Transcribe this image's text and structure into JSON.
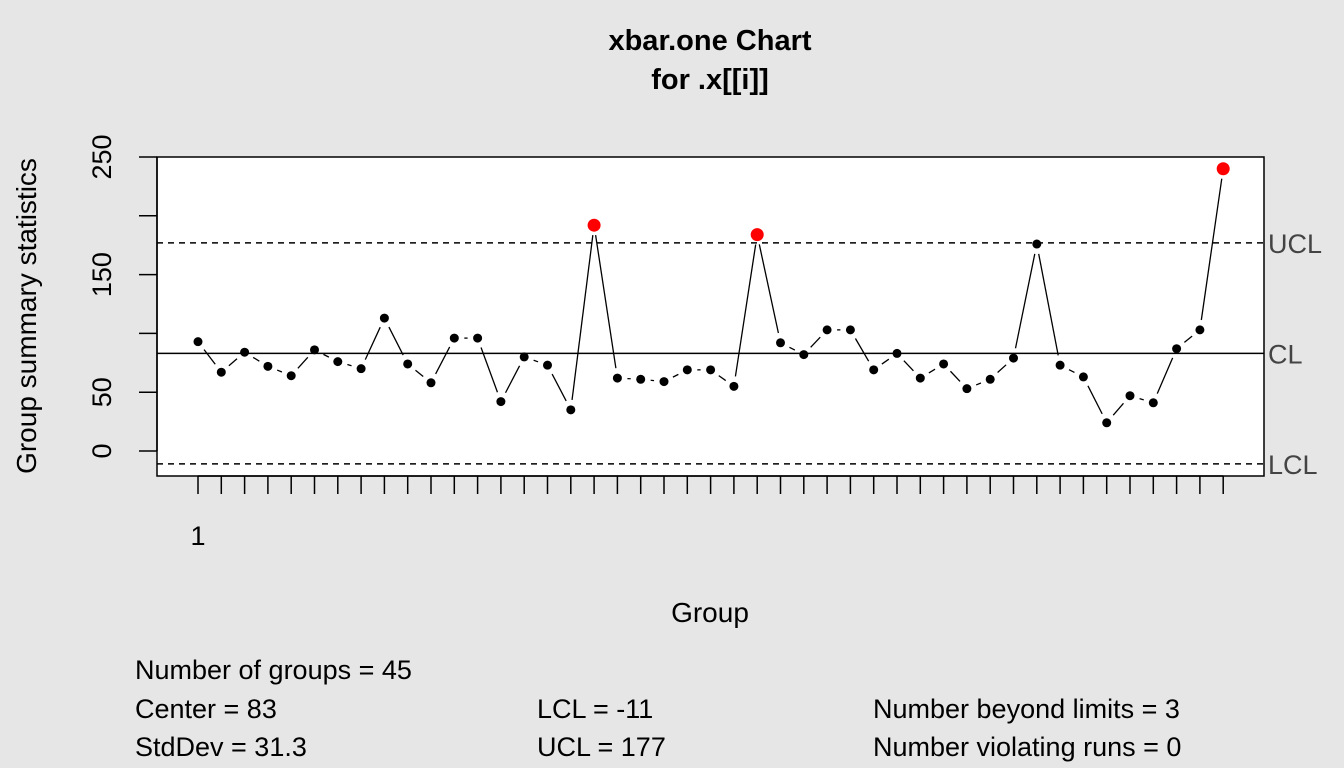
{
  "chart_data": {
    "type": "line",
    "title": "xbar.one Chart",
    "subtitle": "for .x[[i]]",
    "xlabel": "Group",
    "ylabel": "Group summary statistics",
    "x_tick_labels": [
      "1"
    ],
    "y_ticks": [
      0,
      50,
      150,
      250
    ],
    "ylim": [
      -11,
      250
    ],
    "xlim": [
      1,
      45
    ],
    "grid": false,
    "x": [
      1,
      2,
      3,
      4,
      5,
      6,
      7,
      8,
      9,
      10,
      11,
      12,
      13,
      14,
      15,
      16,
      17,
      18,
      19,
      20,
      21,
      22,
      23,
      24,
      25,
      26,
      27,
      28,
      29,
      30,
      31,
      32,
      33,
      34,
      35,
      36,
      37,
      38,
      39,
      40,
      41,
      42,
      43,
      44,
      45
    ],
    "values": [
      93,
      67,
      84,
      72,
      64,
      86,
      76,
      70,
      113,
      74,
      58,
      96,
      96,
      42,
      80,
      73,
      35,
      192,
      62,
      61,
      59,
      69,
      69,
      55,
      184,
      92,
      82,
      103,
      103,
      69,
      83,
      62,
      74,
      53,
      61,
      79,
      176,
      73,
      63,
      24,
      47,
      41,
      87,
      103,
      240
    ],
    "limits": {
      "UCL": 177,
      "CL": 83,
      "LCL": -11
    },
    "limit_labels": [
      "UCL",
      "CL",
      "LCL"
    ],
    "out_of_control_groups": [
      18,
      25,
      45
    ],
    "point_color": "#000000",
    "violation_color": "#ff0000"
  },
  "summary": {
    "groups": "Number of groups = 45",
    "center": "Center = 83",
    "stddev": "StdDev = 31.3",
    "lcl": "LCL = -11",
    "ucl": "UCL = 177",
    "beyond": "Number beyond limits = 3",
    "violating": "Number violating runs = 0"
  }
}
